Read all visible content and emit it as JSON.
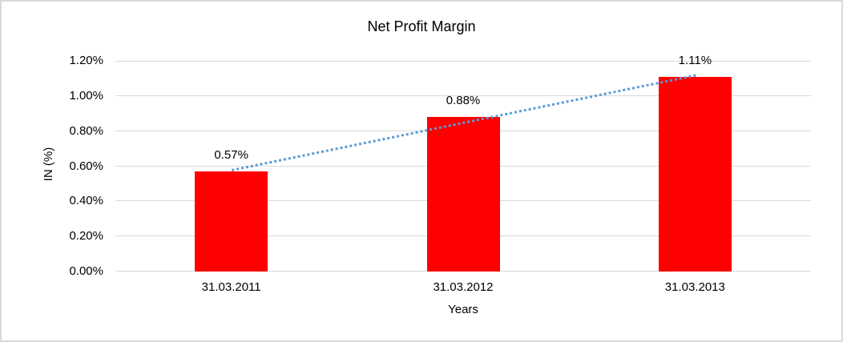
{
  "chart_data": {
    "type": "bar",
    "title": "Net Profit Margin",
    "xlabel": "Years",
    "ylabel": "IN (%)",
    "categories": [
      "31.03.2011",
      "31.03.2012",
      "31.03.2013"
    ],
    "values": [
      0.57,
      0.88,
      1.11
    ],
    "data_labels": [
      "0.57%",
      "0.88%",
      "1.11%"
    ],
    "ylim": [
      0,
      1.2
    ],
    "ytick_labels": [
      "0.00%",
      "0.20%",
      "0.40%",
      "0.60%",
      "0.80%",
      "1.00%",
      "1.20%"
    ],
    "grid": true,
    "legend": "none",
    "colors": {
      "bar": "#FF0000",
      "trendline": "#5B9BD5",
      "gridline": "#D9D9D9",
      "text": "#000000",
      "frame_border": "#D9D9D9",
      "background": "#FFFFFF"
    },
    "trendline": {
      "type": "linear",
      "style": "dotted",
      "start_value": 0.583,
      "end_value": 1.123
    }
  }
}
